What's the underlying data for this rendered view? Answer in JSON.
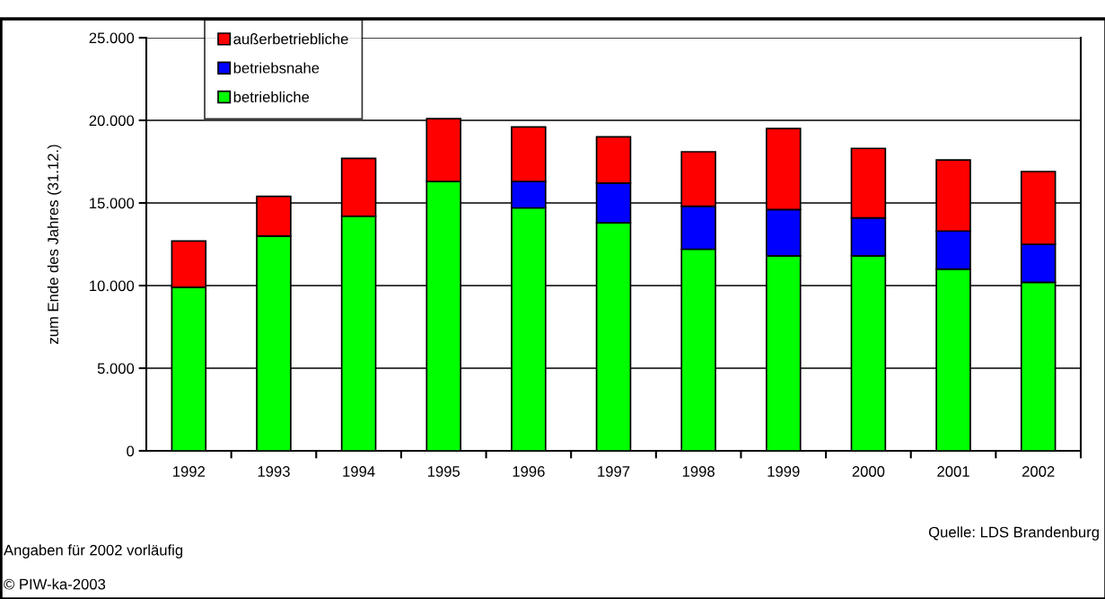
{
  "chart_data": {
    "type": "bar",
    "stacked": true,
    "ylabel": "zum Ende des Jahres (31.12.)",
    "categories": [
      "1992",
      "1993",
      "1994",
      "1995",
      "1996",
      "1997",
      "1998",
      "1999",
      "2000",
      "2001",
      "2002"
    ],
    "series": [
      {
        "name": "betriebliche",
        "color": "#00ff00",
        "values": [
          9900,
          13000,
          14200,
          16300,
          14700,
          13800,
          12200,
          11800,
          11800,
          11000,
          10200
        ]
      },
      {
        "name": "betriebsnahe",
        "color": "#0000ff",
        "values": [
          null,
          null,
          null,
          null,
          1600,
          2400,
          2600,
          2800,
          2300,
          2300,
          2300
        ]
      },
      {
        "name": "außerbetriebliche",
        "color": "#ff0000",
        "values": [
          2800,
          2400,
          3500,
          3800,
          3300,
          2800,
          3300,
          4900,
          4200,
          4300,
          4400
        ]
      }
    ],
    "ylim": [
      0,
      25000
    ],
    "yticks": [
      {
        "value": 0,
        "label": "0"
      },
      {
        "value": 5000,
        "label": "5.000"
      },
      {
        "value": 10000,
        "label": "10.000"
      },
      {
        "value": 15000,
        "label": "15.000"
      },
      {
        "value": 20000,
        "label": "20.000"
      },
      {
        "value": 25000,
        "label": "25.000"
      }
    ],
    "grid": "y",
    "legend": "top left",
    "annotations": [
      "Quelle: LDS Brandenburg",
      "Angaben für 2002 vorläufig",
      "© PIW-ka-2003"
    ]
  }
}
